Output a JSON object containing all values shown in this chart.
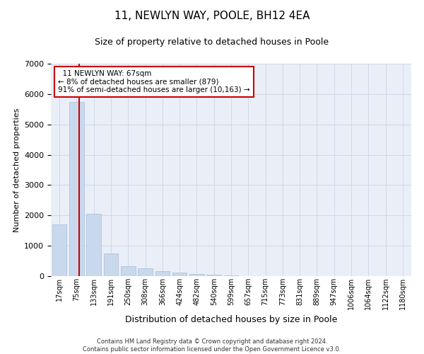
{
  "title": "11, NEWLYN WAY, POOLE, BH12 4EA",
  "subtitle": "Size of property relative to detached houses in Poole",
  "xlabel": "Distribution of detached houses by size in Poole",
  "ylabel": "Number of detached properties",
  "footer_line1": "Contains HM Land Registry data © Crown copyright and database right 2024.",
  "footer_line2": "Contains public sector information licensed under the Open Government Licence v3.0.",
  "annotation_line1": "  11 NEWLYN WAY: 67sqm  ",
  "annotation_line2": "← 8% of detached houses are smaller (879)",
  "annotation_line3": "91% of semi-detached houses are larger (10,163) →",
  "bar_color": "#c8d8ed",
  "bar_edge_color": "#aabdd8",
  "redline_color": "#cc0000",
  "annotation_box_edge": "#cc0000",
  "categories": [
    "17sqm",
    "75sqm",
    "133sqm",
    "191sqm",
    "250sqm",
    "308sqm",
    "366sqm",
    "424sqm",
    "482sqm",
    "540sqm",
    "599sqm",
    "657sqm",
    "715sqm",
    "773sqm",
    "831sqm",
    "889sqm",
    "947sqm",
    "1006sqm",
    "1064sqm",
    "1122sqm",
    "1180sqm"
  ],
  "values": [
    1700,
    5750,
    2050,
    750,
    330,
    260,
    165,
    110,
    80,
    55,
    25,
    10,
    5,
    3,
    2,
    2,
    1,
    1,
    1,
    1,
    0
  ],
  "redline_x": 1.15,
  "ylim": [
    0,
    7000
  ],
  "yticks": [
    0,
    1000,
    2000,
    3000,
    4000,
    5000,
    6000,
    7000
  ],
  "grid_color": "#d0d8e8",
  "background_color": "#eaeff7",
  "title_fontsize": 11,
  "subtitle_fontsize": 9,
  "ylabel_fontsize": 8,
  "xlabel_fontsize": 9,
  "tick_fontsize": 7,
  "footer_fontsize": 6,
  "annotation_fontsize": 7.5
}
